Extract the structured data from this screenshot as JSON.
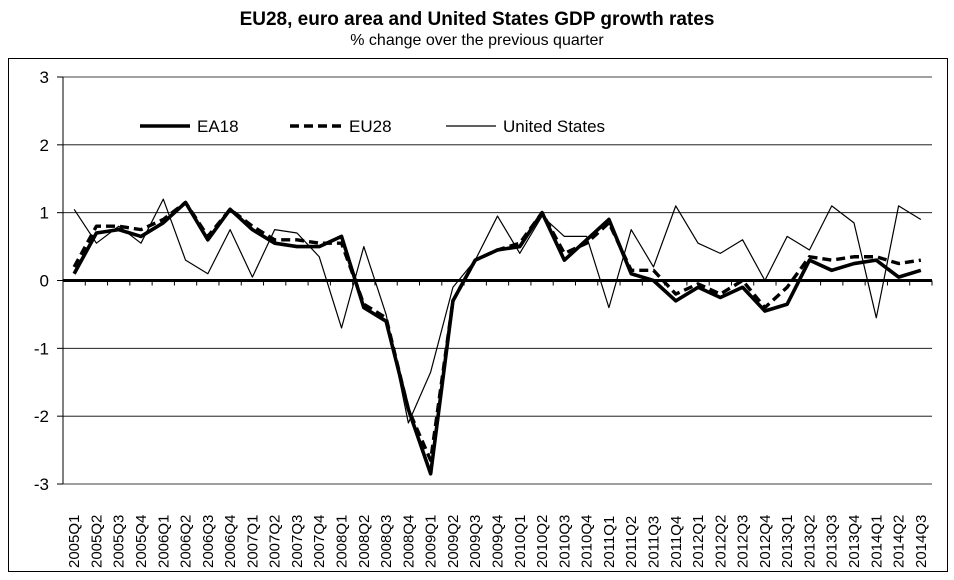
{
  "title": "EU28, euro area and United States GDP growth rates",
  "subtitle": "% change over the previous quarter",
  "chart_data": {
    "type": "line",
    "title": "EU28, euro area and United States GDP growth rates",
    "subtitle": "% change over the previous quarter",
    "xlabel": "",
    "ylabel": "",
    "ylim": [
      -3,
      3
    ],
    "yticks": [
      3,
      2,
      1,
      0,
      -1,
      -2,
      -3
    ],
    "grid": true,
    "legend_position": "top-left",
    "categories": [
      "2005Q1",
      "2005Q2",
      "2005Q3",
      "2005Q4",
      "2006Q1",
      "2006Q2",
      "2006Q3",
      "2006Q4",
      "2007Q1",
      "2007Q2",
      "2007Q3",
      "2007Q4",
      "2008Q1",
      "2008Q2",
      "2008Q3",
      "2008Q4",
      "2009Q1",
      "2009Q2",
      "2009Q3",
      "2009Q4",
      "2010Q1",
      "2010Q2",
      "2010Q3",
      "2010Q4",
      "2011Q1",
      "2011Q2",
      "2011Q3",
      "2011Q4",
      "2012Q1",
      "2012Q2",
      "2012Q3",
      "2012Q4",
      "2013Q1",
      "2013Q2",
      "2013Q3",
      "2013Q4",
      "2014Q1",
      "2014Q2",
      "2014Q3"
    ],
    "series": [
      {
        "name": "EA18",
        "style": "thick-solid",
        "values": [
          0.1,
          0.7,
          0.75,
          0.65,
          0.85,
          1.15,
          0.6,
          1.05,
          0.75,
          0.55,
          0.5,
          0.5,
          0.65,
          -0.4,
          -0.6,
          -1.9,
          -2.85,
          -0.3,
          0.3,
          0.45,
          0.5,
          1.0,
          0.3,
          0.6,
          0.9,
          0.1,
          0.0,
          -0.3,
          -0.1,
          -0.25,
          -0.1,
          -0.45,
          -0.35,
          0.3,
          0.15,
          0.25,
          0.3,
          0.05,
          0.15
        ]
      },
      {
        "name": "EU28",
        "style": "thick-dashed",
        "values": [
          0.2,
          0.8,
          0.8,
          0.75,
          0.9,
          1.15,
          0.65,
          1.05,
          0.8,
          0.6,
          0.6,
          0.55,
          0.55,
          -0.35,
          -0.55,
          -1.9,
          -2.65,
          -0.3,
          0.3,
          0.45,
          0.55,
          1.0,
          0.4,
          0.55,
          0.85,
          0.15,
          0.15,
          -0.2,
          -0.05,
          -0.2,
          0.0,
          -0.4,
          -0.1,
          0.35,
          0.3,
          0.35,
          0.35,
          0.25,
          0.3
        ]
      },
      {
        "name": "United States",
        "style": "thin-solid",
        "values": [
          1.05,
          0.55,
          0.8,
          0.55,
          1.2,
          0.3,
          0.1,
          0.75,
          0.05,
          0.75,
          0.7,
          0.35,
          -0.7,
          0.5,
          -0.5,
          -2.1,
          -1.35,
          -0.1,
          0.3,
          0.95,
          0.4,
          0.95,
          0.65,
          0.65,
          -0.4,
          0.75,
          0.2,
          1.1,
          0.55,
          0.4,
          0.6,
          0.0,
          0.65,
          0.45,
          1.1,
          0.85,
          -0.55,
          1.1,
          0.9
        ]
      }
    ]
  }
}
